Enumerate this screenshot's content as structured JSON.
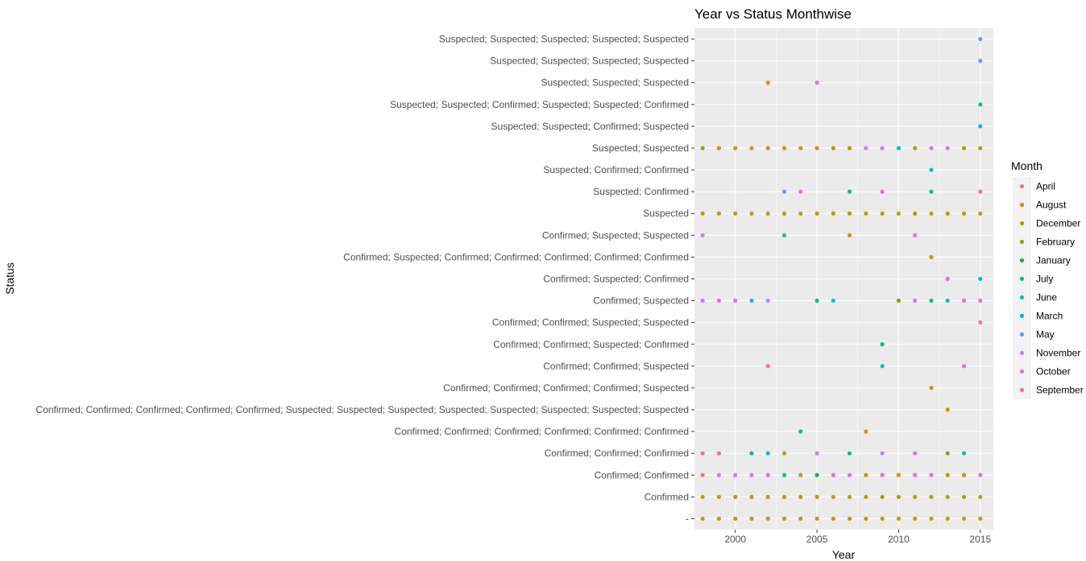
{
  "chart_data": {
    "type": "scatter",
    "title": "Year vs Status Monthwise",
    "xlabel": "Year",
    "ylabel": "Status",
    "xlim": [
      1997.5,
      2015.8
    ],
    "xticks": [
      2000,
      2005,
      2010,
      2015
    ],
    "grid": true,
    "legend_position": "right",
    "legend": {
      "title": "Month",
      "entries": [
        {
          "name": "April",
          "color": "#F8766D"
        },
        {
          "name": "August",
          "color": "#DE8C00"
        },
        {
          "name": "December",
          "color": "#B79F00"
        },
        {
          "name": "February",
          "color": "#7CAE00"
        },
        {
          "name": "January",
          "color": "#00BA38"
        },
        {
          "name": "July",
          "color": "#00C08B"
        },
        {
          "name": "June",
          "color": "#00BFC4"
        },
        {
          "name": "March",
          "color": "#00B4F0"
        },
        {
          "name": "May",
          "color": "#619CFF"
        },
        {
          "name": "November",
          "color": "#C77CFF"
        },
        {
          "name": "October",
          "color": "#F564E3"
        },
        {
          "name": "September",
          "color": "#FF64B0"
        }
      ]
    },
    "categories": [
      "-",
      "Confirmed",
      "Confirmed; Confirmed",
      "Confirmed; Confirmed; Confirmed",
      "Confirmed; Confirmed; Confirmed; Confirmed; Confirmed; Confirmed",
      "Confirmed; Confirmed; Confirmed; Confirmed; Confirmed; Suspected; Suspected; Suspected; Suspected; Suspected; Suspected; Suspected; Suspected",
      "Confirmed; Confirmed; Confirmed; Confirmed; Suspected",
      "Confirmed; Confirmed; Suspected",
      "Confirmed; Confirmed; Suspected; Confirmed",
      "Confirmed; Confirmed; Suspected; Suspected",
      "Confirmed; Suspected",
      "Confirmed; Suspected; Confirmed",
      "Confirmed; Suspected; Confirmed; Confirmed; Confirmed; Confirmed; Confirmed",
      "Confirmed; Suspected; Suspected",
      "Suspected",
      "Suspected; Confirmed",
      "Suspected; Confirmed; Confirmed",
      "Suspected; Suspected",
      "Suspected; Suspected; Confirmed; Suspected",
      "Suspected; Suspected; Confirmed; Suspected; Suspected; Confirmed",
      "Suspected; Suspected; Suspected",
      "Suspected; Suspected; Suspected; Suspected",
      "Suspected; Suspected; Suspected; Suspected; Suspected"
    ],
    "points": [
      {
        "status": 0,
        "year": 1998,
        "month": "December"
      },
      {
        "status": 0,
        "year": 1999,
        "month": "December"
      },
      {
        "status": 0,
        "year": 2000,
        "month": "December"
      },
      {
        "status": 0,
        "year": 2001,
        "month": "December"
      },
      {
        "status": 0,
        "year": 2002,
        "month": "December"
      },
      {
        "status": 0,
        "year": 2003,
        "month": "December"
      },
      {
        "status": 0,
        "year": 2004,
        "month": "December"
      },
      {
        "status": 0,
        "year": 2005,
        "month": "December"
      },
      {
        "status": 0,
        "year": 2006,
        "month": "December"
      },
      {
        "status": 0,
        "year": 2007,
        "month": "December"
      },
      {
        "status": 0,
        "year": 2008,
        "month": "December"
      },
      {
        "status": 0,
        "year": 2009,
        "month": "December"
      },
      {
        "status": 0,
        "year": 2010,
        "month": "December"
      },
      {
        "status": 0,
        "year": 2011,
        "month": "December"
      },
      {
        "status": 0,
        "year": 2012,
        "month": "December"
      },
      {
        "status": 0,
        "year": 2013,
        "month": "December"
      },
      {
        "status": 0,
        "year": 2014,
        "month": "December"
      },
      {
        "status": 0,
        "year": 2015,
        "month": "December"
      },
      {
        "status": 1,
        "year": 1998,
        "month": "December"
      },
      {
        "status": 1,
        "year": 1999,
        "month": "December"
      },
      {
        "status": 1,
        "year": 2000,
        "month": "December"
      },
      {
        "status": 1,
        "year": 2001,
        "month": "December"
      },
      {
        "status": 1,
        "year": 2002,
        "month": "December"
      },
      {
        "status": 1,
        "year": 2003,
        "month": "December"
      },
      {
        "status": 1,
        "year": 2004,
        "month": "December"
      },
      {
        "status": 1,
        "year": 2005,
        "month": "December"
      },
      {
        "status": 1,
        "year": 2006,
        "month": "December"
      },
      {
        "status": 1,
        "year": 2007,
        "month": "December"
      },
      {
        "status": 1,
        "year": 2008,
        "month": "December"
      },
      {
        "status": 1,
        "year": 2009,
        "month": "December"
      },
      {
        "status": 1,
        "year": 2010,
        "month": "December"
      },
      {
        "status": 1,
        "year": 2011,
        "month": "December"
      },
      {
        "status": 1,
        "year": 2012,
        "month": "December"
      },
      {
        "status": 1,
        "year": 2013,
        "month": "December"
      },
      {
        "status": 1,
        "year": 2014,
        "month": "December"
      },
      {
        "status": 1,
        "year": 2015,
        "month": "December"
      },
      {
        "status": 2,
        "year": 1998,
        "month": "April"
      },
      {
        "status": 2,
        "year": 1999,
        "month": "November"
      },
      {
        "status": 2,
        "year": 2000,
        "month": "November"
      },
      {
        "status": 2,
        "year": 2001,
        "month": "October"
      },
      {
        "status": 2,
        "year": 2002,
        "month": "October"
      },
      {
        "status": 2,
        "year": 2003,
        "month": "July"
      },
      {
        "status": 2,
        "year": 2004,
        "month": "December"
      },
      {
        "status": 2,
        "year": 2005,
        "month": "January"
      },
      {
        "status": 2,
        "year": 2006,
        "month": "October"
      },
      {
        "status": 2,
        "year": 2007,
        "month": "October"
      },
      {
        "status": 2,
        "year": 2008,
        "month": "December"
      },
      {
        "status": 2,
        "year": 2009,
        "month": "October"
      },
      {
        "status": 2,
        "year": 2010,
        "month": "August"
      },
      {
        "status": 2,
        "year": 2011,
        "month": "October"
      },
      {
        "status": 2,
        "year": 2012,
        "month": "October"
      },
      {
        "status": 2,
        "year": 2013,
        "month": "December"
      },
      {
        "status": 2,
        "year": 2014,
        "month": "December"
      },
      {
        "status": 2,
        "year": 2015,
        "month": "November"
      },
      {
        "status": 3,
        "year": 1998,
        "month": "September"
      },
      {
        "status": 3,
        "year": 1999,
        "month": "September"
      },
      {
        "status": 3,
        "year": 2001,
        "month": "July"
      },
      {
        "status": 3,
        "year": 2002,
        "month": "June"
      },
      {
        "status": 3,
        "year": 2003,
        "month": "December"
      },
      {
        "status": 3,
        "year": 2005,
        "month": "November"
      },
      {
        "status": 3,
        "year": 2007,
        "month": "July"
      },
      {
        "status": 3,
        "year": 2009,
        "month": "November"
      },
      {
        "status": 3,
        "year": 2011,
        "month": "October"
      },
      {
        "status": 3,
        "year": 2013,
        "month": "February"
      },
      {
        "status": 3,
        "year": 2014,
        "month": "June"
      },
      {
        "status": 4,
        "year": 2004,
        "month": "July"
      },
      {
        "status": 4,
        "year": 2008,
        "month": "August"
      },
      {
        "status": 5,
        "year": 2013,
        "month": "August"
      },
      {
        "status": 6,
        "year": 2012,
        "month": "August"
      },
      {
        "status": 7,
        "year": 2002,
        "month": "September"
      },
      {
        "status": 7,
        "year": 2009,
        "month": "June"
      },
      {
        "status": 7,
        "year": 2014,
        "month": "October"
      },
      {
        "status": 8,
        "year": 2009,
        "month": "July"
      },
      {
        "status": 9,
        "year": 2015,
        "month": "April"
      },
      {
        "status": 10,
        "year": 1998,
        "month": "November"
      },
      {
        "status": 10,
        "year": 1999,
        "month": "October"
      },
      {
        "status": 10,
        "year": 2000,
        "month": "October"
      },
      {
        "status": 10,
        "year": 2001,
        "month": "June"
      },
      {
        "status": 10,
        "year": 2002,
        "month": "November"
      },
      {
        "status": 10,
        "year": 2005,
        "month": "July"
      },
      {
        "status": 10,
        "year": 2006,
        "month": "June"
      },
      {
        "status": 10,
        "year": 2010,
        "month": "February"
      },
      {
        "status": 10,
        "year": 2011,
        "month": "November"
      },
      {
        "status": 10,
        "year": 2012,
        "month": "July"
      },
      {
        "status": 10,
        "year": 2013,
        "month": "June"
      },
      {
        "status": 10,
        "year": 2014,
        "month": "October"
      },
      {
        "status": 10,
        "year": 2015,
        "month": "October"
      },
      {
        "status": 11,
        "year": 2013,
        "month": "October"
      },
      {
        "status": 11,
        "year": 2015,
        "month": "June"
      },
      {
        "status": 12,
        "year": 2012,
        "month": "August"
      },
      {
        "status": 13,
        "year": 1998,
        "month": "November"
      },
      {
        "status": 13,
        "year": 2003,
        "month": "July"
      },
      {
        "status": 13,
        "year": 2007,
        "month": "December"
      },
      {
        "status": 13,
        "year": 2011,
        "month": "October"
      },
      {
        "status": 14,
        "year": 1998,
        "month": "December"
      },
      {
        "status": 14,
        "year": 1999,
        "month": "December"
      },
      {
        "status": 14,
        "year": 2000,
        "month": "December"
      },
      {
        "status": 14,
        "year": 2001,
        "month": "December"
      },
      {
        "status": 14,
        "year": 2002,
        "month": "December"
      },
      {
        "status": 14,
        "year": 2003,
        "month": "December"
      },
      {
        "status": 14,
        "year": 2004,
        "month": "December"
      },
      {
        "status": 14,
        "year": 2005,
        "month": "December"
      },
      {
        "status": 14,
        "year": 2006,
        "month": "December"
      },
      {
        "status": 14,
        "year": 2007,
        "month": "December"
      },
      {
        "status": 14,
        "year": 2008,
        "month": "December"
      },
      {
        "status": 14,
        "year": 2009,
        "month": "December"
      },
      {
        "status": 14,
        "year": 2010,
        "month": "December"
      },
      {
        "status": 14,
        "year": 2011,
        "month": "December"
      },
      {
        "status": 14,
        "year": 2012,
        "month": "December"
      },
      {
        "status": 14,
        "year": 2013,
        "month": "December"
      },
      {
        "status": 14,
        "year": 2014,
        "month": "December"
      },
      {
        "status": 14,
        "year": 2015,
        "month": "December"
      },
      {
        "status": 15,
        "year": 2003,
        "month": "May"
      },
      {
        "status": 15,
        "year": 2004,
        "month": "October"
      },
      {
        "status": 15,
        "year": 2007,
        "month": "July"
      },
      {
        "status": 15,
        "year": 2009,
        "month": "October"
      },
      {
        "status": 15,
        "year": 2012,
        "month": "July"
      },
      {
        "status": 15,
        "year": 2015,
        "month": "September"
      },
      {
        "status": 16,
        "year": 2012,
        "month": "June"
      },
      {
        "status": 17,
        "year": 1998,
        "month": "February"
      },
      {
        "status": 17,
        "year": 1999,
        "month": "December"
      },
      {
        "status": 17,
        "year": 2000,
        "month": "December"
      },
      {
        "status": 17,
        "year": 2001,
        "month": "December"
      },
      {
        "status": 17,
        "year": 2002,
        "month": "December"
      },
      {
        "status": 17,
        "year": 2003,
        "month": "December"
      },
      {
        "status": 17,
        "year": 2004,
        "month": "December"
      },
      {
        "status": 17,
        "year": 2005,
        "month": "December"
      },
      {
        "status": 17,
        "year": 2006,
        "month": "December"
      },
      {
        "status": 17,
        "year": 2007,
        "month": "December"
      },
      {
        "status": 17,
        "year": 2008,
        "month": "November"
      },
      {
        "status": 17,
        "year": 2009,
        "month": "November"
      },
      {
        "status": 17,
        "year": 2010,
        "month": "June"
      },
      {
        "status": 17,
        "year": 2011,
        "month": "December"
      },
      {
        "status": 17,
        "year": 2012,
        "month": "November"
      },
      {
        "status": 17,
        "year": 2013,
        "month": "November"
      },
      {
        "status": 17,
        "year": 2014,
        "month": "December"
      },
      {
        "status": 17,
        "year": 2015,
        "month": "December"
      },
      {
        "status": 18,
        "year": 2015,
        "month": "March"
      },
      {
        "status": 19,
        "year": 2015,
        "month": "July"
      },
      {
        "status": 20,
        "year": 2002,
        "month": "August"
      },
      {
        "status": 20,
        "year": 2005,
        "month": "October"
      },
      {
        "status": 21,
        "year": 2015,
        "month": "May"
      },
      {
        "status": 22,
        "year": 2015,
        "month": "May"
      }
    ]
  }
}
